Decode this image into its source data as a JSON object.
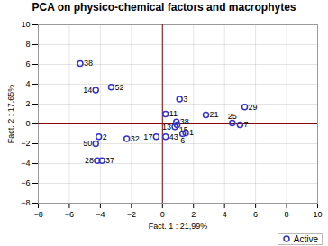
{
  "chart_data": {
    "type": "scatter",
    "title": "PCA on physico-chemical factors and macrophytes",
    "xlabel": "Fact. 1 : 21,99%",
    "ylabel": "Fact. 2 : 17,65%",
    "xlim": [
      -8,
      10
    ],
    "ylim": [
      -8,
      10
    ],
    "xticks": [
      -8,
      -6,
      -4,
      -2,
      0,
      2,
      4,
      6,
      8,
      10
    ],
    "yticks": [
      -8,
      -6,
      -4,
      -2,
      0,
      2,
      4,
      6,
      8,
      10
    ],
    "grid": true,
    "legend": "lower right",
    "series": [
      {
        "name": "Active",
        "color": "#3333cc",
        "marker": "circle",
        "x": [
          -5.3,
          -4.3,
          -3.3,
          -4.1,
          -4.3,
          -4.2,
          -3.9,
          -2.3,
          -0.4,
          0.2,
          0.2,
          1.1,
          0.9,
          0.8,
          0.95,
          1.5,
          1.3,
          2.8,
          5.3,
          4.5,
          5.0
        ],
        "values": [
          6.1,
          3.4,
          3.7,
          -1.3,
          -2.0,
          -3.7,
          -3.7,
          -1.5,
          -1.3,
          -1.3,
          1.0,
          2.5,
          0.2,
          -0.3,
          -0.1,
          -0.9,
          -1.0,
          0.9,
          1.7,
          0.1,
          -0.1
        ],
        "labels": [
          "38",
          "14",
          "52",
          "2",
          "50",
          "28",
          "37",
          "32",
          "17",
          "43",
          "11",
          "3",
          "38",
          "13",
          "15",
          "1",
          "6",
          "21",
          "29",
          "25",
          "7"
        ]
      }
    ]
  }
}
